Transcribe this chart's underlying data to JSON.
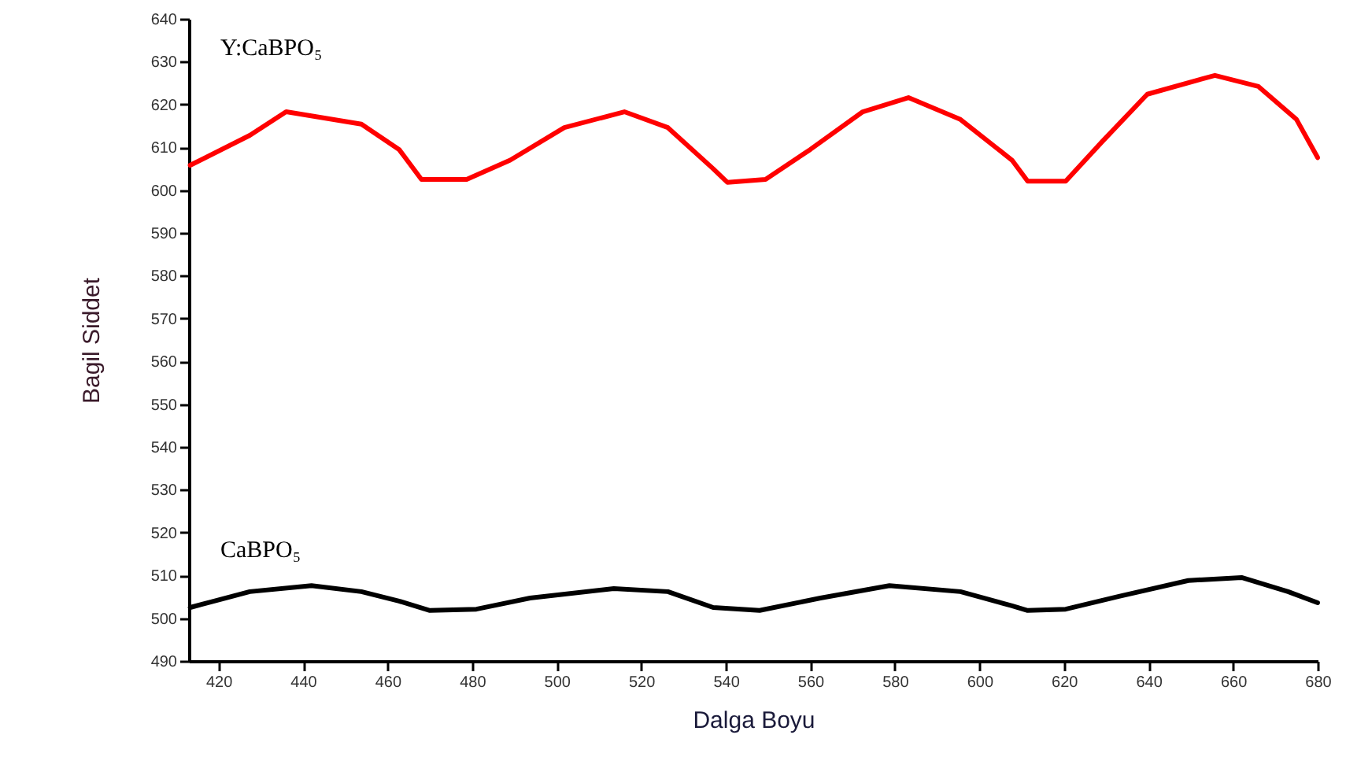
{
  "chart_data": {
    "type": "line",
    "xlabel": "Dalga Boyu",
    "ylabel": "Bagil Siddet",
    "xlim": [
      413,
      680
    ],
    "xticks": [
      420,
      440,
      460,
      480,
      500,
      520,
      540,
      560,
      580,
      600,
      620,
      640,
      660,
      680
    ],
    "ylim": [
      490,
      640
    ],
    "yticks": [
      490,
      500,
      510,
      520,
      530,
      540,
      550,
      560,
      570,
      580,
      590,
      600,
      610,
      620,
      630,
      640
    ],
    "grid": false,
    "marker": "none",
    "line_style": "solid",
    "series": [
      {
        "name": "Y:CaBPO₅",
        "color": "#ff0000",
        "x": [
          413.3,
          427.4,
          436,
          453.8,
          462.7,
          468,
          478.7,
          489,
          501.8,
          516,
          526.3,
          537,
          540.4,
          549.4,
          560,
          572.4,
          583.2,
          595.5,
          607.7,
          611.4,
          620.4,
          629,
          639.7,
          655.7,
          666,
          675,
          680
        ],
        "values": [
          605.8,
          612.8,
          618.3,
          615.4,
          609.5,
          602.5,
          602.5,
          607,
          614.6,
          618.3,
          614.6,
          605,
          601.8,
          602.5,
          609.5,
          618.3,
          621.6,
          616.5,
          607,
          602.1,
          602.1,
          611.3,
          622.4,
          626.8,
          624.2,
          616.5,
          607.6
        ]
      },
      {
        "name": "CaBPO₅",
        "color": "#000000",
        "x": [
          413.3,
          427.4,
          442,
          453.8,
          462.7,
          470,
          481,
          493.7,
          513.5,
          526.3,
          537,
          548,
          562.4,
          578.7,
          595.5,
          607.7,
          611.4,
          620.4,
          633,
          649.4,
          662,
          673,
          680
        ],
        "values": [
          502.5,
          506.2,
          507.6,
          506.2,
          504,
          501.8,
          502.1,
          504.7,
          506.9,
          506.2,
          502.5,
          501.8,
          504.7,
          507.6,
          506.2,
          502.9,
          501.8,
          502.1,
          505.1,
          508.8,
          509.5,
          506.2,
          503.6
        ]
      }
    ]
  }
}
